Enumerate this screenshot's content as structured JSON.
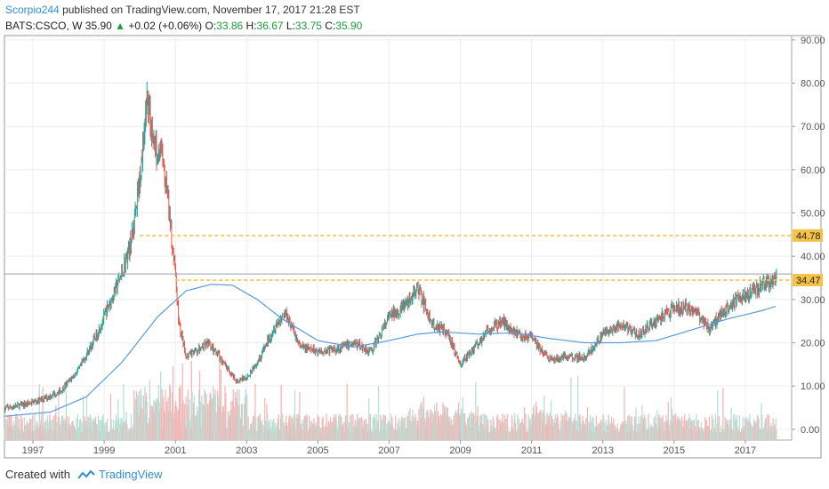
{
  "header": {
    "author": "Scorpio244",
    "published_text": "published on TradingView.com, November 17, 2017 21:28 EST",
    "symbol": "BATS:CSCO, W",
    "last": "35.90",
    "change_arrow": "▲",
    "change": "+0.02 (+0.06%)",
    "o_label": "O:",
    "o_val": "33.86",
    "h_label": "H:",
    "h_val": "36.67",
    "l_label": "L:",
    "l_val": "33.75",
    "c_label": "C:",
    "c_val": "35.90"
  },
  "footer": {
    "created_with": "Created with",
    "brand": "TradingView",
    "logo_icon": "tradingview-logo-icon"
  },
  "colors": {
    "up": "#26a69a",
    "down": "#ef5350",
    "up_vol": "#b8dfd6",
    "down_vol": "#f4b7b7",
    "ma": "#5b9bd5",
    "level": "#f5c244",
    "price_line": "#9aa0a6",
    "grid": "#eeeeee"
  },
  "chart_data": {
    "type": "candlestick",
    "x_ticks": [
      "1997",
      "1999",
      "2001",
      "2003",
      "2005",
      "2007",
      "2009",
      "2011",
      "2013",
      "2015",
      "2017"
    ],
    "y_ticks": [
      "0.00",
      "10.00",
      "20.00",
      "30.00",
      "40.00",
      "50.00",
      "60.00",
      "70.00",
      "80.00",
      "90.00"
    ],
    "xlim": [
      1996.2,
      2018.3
    ],
    "ylim": [
      -2.5,
      91
    ],
    "grid": true,
    "levels": [
      {
        "value": 44.78,
        "label": "44.78",
        "x_start": 2000.0
      },
      {
        "value": 34.47,
        "label": "34.47",
        "x_start": 2001.0
      }
    ],
    "current_price": 35.9,
    "price_anchors": [
      [
        1996.2,
        4.8
      ],
      [
        1996.8,
        5.8
      ],
      [
        1997.3,
        7.0
      ],
      [
        1997.8,
        9.0
      ],
      [
        1998.3,
        14.0
      ],
      [
        1998.8,
        22.0
      ],
      [
        1999.2,
        30.0
      ],
      [
        1999.5,
        36.0
      ],
      [
        1999.8,
        45.0
      ],
      [
        2000.0,
        58.0
      ],
      [
        2000.2,
        76.0
      ],
      [
        2000.4,
        66.0
      ],
      [
        2000.6,
        64.0
      ],
      [
        2000.8,
        52.0
      ],
      [
        2001.0,
        36.0
      ],
      [
        2001.1,
        24.0
      ],
      [
        2001.3,
        17.0
      ],
      [
        2001.6,
        18.0
      ],
      [
        2001.9,
        20.0
      ],
      [
        2002.3,
        16.0
      ],
      [
        2002.7,
        11.0
      ],
      [
        2003.0,
        12.0
      ],
      [
        2003.4,
        17.0
      ],
      [
        2003.8,
        24.0
      ],
      [
        2004.1,
        27.0
      ],
      [
        2004.5,
        19.0
      ],
      [
        2005.0,
        18.0
      ],
      [
        2005.5,
        18.5
      ],
      [
        2006.0,
        20.0
      ],
      [
        2006.5,
        18.0
      ],
      [
        2007.0,
        26.0
      ],
      [
        2007.5,
        29.0
      ],
      [
        2007.8,
        33.0
      ],
      [
        2008.2,
        24.0
      ],
      [
        2008.6,
        23.0
      ],
      [
        2009.0,
        15.0
      ],
      [
        2009.4,
        19.0
      ],
      [
        2009.8,
        23.0
      ],
      [
        2010.2,
        25.0
      ],
      [
        2010.6,
        22.0
      ],
      [
        2011.0,
        21.0
      ],
      [
        2011.5,
        16.0
      ],
      [
        2012.0,
        17.0
      ],
      [
        2012.5,
        16.5
      ],
      [
        2013.0,
        22.0
      ],
      [
        2013.5,
        24.0
      ],
      [
        2014.0,
        22.0
      ],
      [
        2014.5,
        25.0
      ],
      [
        2015.0,
        28.0
      ],
      [
        2015.5,
        28.0
      ],
      [
        2016.0,
        23.5
      ],
      [
        2016.5,
        28.5
      ],
      [
        2017.0,
        31.0
      ],
      [
        2017.4,
        33.0
      ],
      [
        2017.7,
        33.5
      ],
      [
        2017.88,
        35.9
      ]
    ],
    "ma_anchors": [
      [
        1996.2,
        3.0
      ],
      [
        1997.5,
        4.0
      ],
      [
        1998.5,
        7.5
      ],
      [
        1999.5,
        15.5
      ],
      [
        2000.5,
        26.0
      ],
      [
        2001.3,
        32.0
      ],
      [
        2002.0,
        33.5
      ],
      [
        2002.6,
        33.3
      ],
      [
        2003.3,
        30.0
      ],
      [
        2004.0,
        25.5
      ],
      [
        2005.0,
        20.5
      ],
      [
        2006.0,
        19.0
      ],
      [
        2007.0,
        20.5
      ],
      [
        2007.8,
        22.0
      ],
      [
        2008.5,
        22.5
      ],
      [
        2009.5,
        22.0
      ],
      [
        2010.5,
        22.3
      ],
      [
        2011.5,
        21.0
      ],
      [
        2012.5,
        20.0
      ],
      [
        2013.5,
        20.0
      ],
      [
        2014.5,
        20.5
      ],
      [
        2015.5,
        23.0
      ],
      [
        2016.5,
        25.5
      ],
      [
        2017.5,
        27.5
      ],
      [
        2017.88,
        28.5
      ]
    ]
  }
}
